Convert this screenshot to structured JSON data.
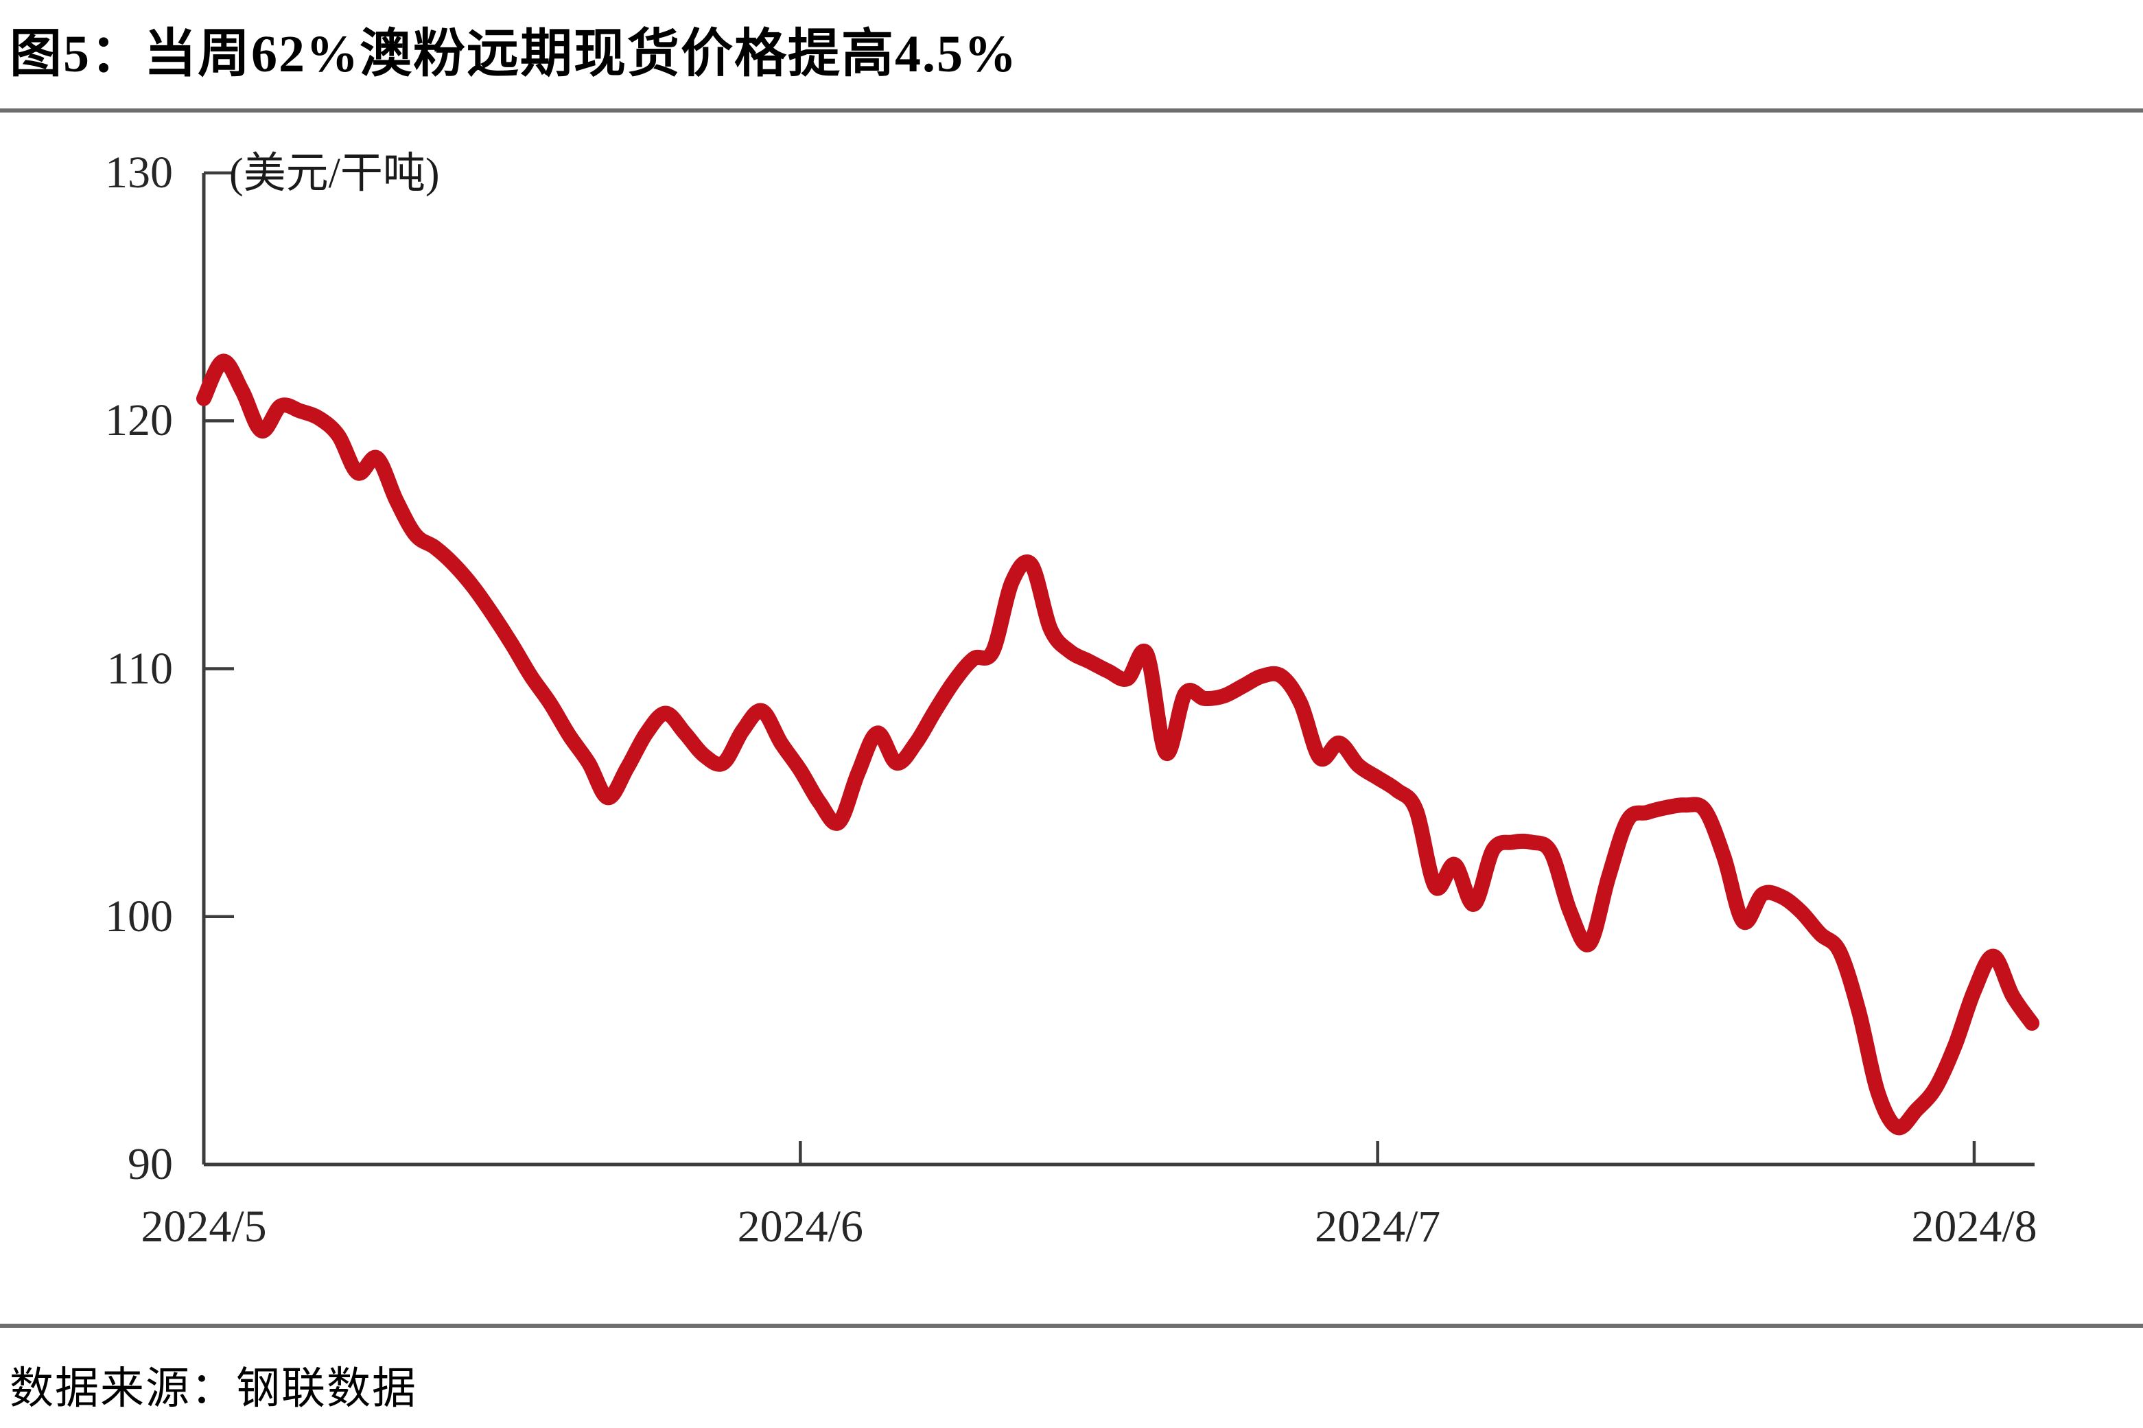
{
  "title": "图5：当周62%澳粉远期现货价格提高4.5%",
  "source": "数据来源：钢联数据",
  "chart_data": {
    "type": "line",
    "title": "图5：当周62%澳粉远期现货价格提高4.5%",
    "series_name": "62%澳粉远期现货价格",
    "unit_label": "(美元/干吨)",
    "ylabel": "美元/干吨",
    "ylim": [
      90,
      130
    ],
    "yticks": [
      130,
      120,
      110,
      100,
      90
    ],
    "xticks": [
      "2024/5",
      "2024/6",
      "2024/7",
      "2024/8"
    ],
    "xtick_days": [
      0,
      31,
      61,
      92
    ],
    "grid": false,
    "legend": "none",
    "line_color": "#c3101b",
    "axis_color": "#3c3c3c",
    "x_dates": [
      "2024-05-01",
      "2024-05-02",
      "2024-05-03",
      "2024-05-04",
      "2024-05-05",
      "2024-05-06",
      "2024-05-07",
      "2024-05-08",
      "2024-05-09",
      "2024-05-10",
      "2024-05-11",
      "2024-05-12",
      "2024-05-13",
      "2024-05-14",
      "2024-05-15",
      "2024-05-16",
      "2024-05-17",
      "2024-05-18",
      "2024-05-19",
      "2024-05-20",
      "2024-05-21",
      "2024-05-22",
      "2024-05-23",
      "2024-05-24",
      "2024-05-25",
      "2024-05-26",
      "2024-05-27",
      "2024-05-28",
      "2024-05-29",
      "2024-05-30",
      "2024-05-31",
      "2024-06-01",
      "2024-06-02",
      "2024-06-03",
      "2024-06-04",
      "2024-06-05",
      "2024-06-06",
      "2024-06-07",
      "2024-06-08",
      "2024-06-09",
      "2024-06-10",
      "2024-06-11",
      "2024-06-12",
      "2024-06-13",
      "2024-06-14",
      "2024-06-15",
      "2024-06-16",
      "2024-06-17",
      "2024-06-18",
      "2024-06-19",
      "2024-06-20",
      "2024-06-21",
      "2024-06-22",
      "2024-06-23",
      "2024-06-24",
      "2024-06-25",
      "2024-06-26",
      "2024-06-27",
      "2024-06-28",
      "2024-06-29",
      "2024-06-30",
      "2024-07-01",
      "2024-07-02",
      "2024-07-03",
      "2024-07-04",
      "2024-07-05",
      "2024-07-06",
      "2024-07-07",
      "2024-07-08",
      "2024-07-09",
      "2024-07-10",
      "2024-07-11",
      "2024-07-12",
      "2024-07-13",
      "2024-07-14",
      "2024-07-15",
      "2024-07-16",
      "2024-07-17",
      "2024-07-18",
      "2024-07-19",
      "2024-07-20",
      "2024-07-21",
      "2024-07-22",
      "2024-07-23",
      "2024-07-24",
      "2024-07-25",
      "2024-07-26",
      "2024-07-27",
      "2024-07-28",
      "2024-07-29",
      "2024-07-30",
      "2024-07-31",
      "2024-08-01",
      "2024-08-02",
      "2024-08-03",
      "2024-08-04"
    ],
    "values": [
      120.9,
      122.4,
      121.2,
      119.6,
      120.6,
      120.4,
      120.1,
      119.4,
      117.9,
      118.5,
      116.8,
      115.4,
      114.9,
      114.2,
      113.3,
      112.2,
      111.0,
      109.7,
      108.6,
      107.3,
      106.2,
      104.8,
      106.0,
      107.4,
      108.2,
      107.4,
      106.5,
      106.2,
      107.5,
      108.3,
      107.0,
      105.9,
      104.6,
      103.8,
      105.8,
      107.4,
      106.2,
      107.0,
      108.3,
      109.5,
      110.4,
      110.7,
      113.5,
      114.2,
      111.6,
      110.7,
      110.3,
      109.9,
      109.6,
      110.6,
      106.6,
      109.0,
      108.8,
      108.9,
      109.3,
      109.7,
      109.7,
      108.6,
      106.4,
      107.0,
      106.1,
      105.6,
      105.1,
      104.3,
      101.2,
      102.1,
      100.5,
      102.7,
      103.0,
      103.0,
      102.6,
      100.2,
      98.9,
      101.6,
      103.9,
      104.2,
      104.4,
      104.5,
      104.3,
      102.4,
      99.8,
      100.9,
      100.8,
      100.2,
      99.3,
      98.6,
      96.2,
      92.9,
      91.5,
      92.2,
      93.1,
      94.8,
      97.0,
      98.4,
      96.8,
      95.7
    ]
  }
}
